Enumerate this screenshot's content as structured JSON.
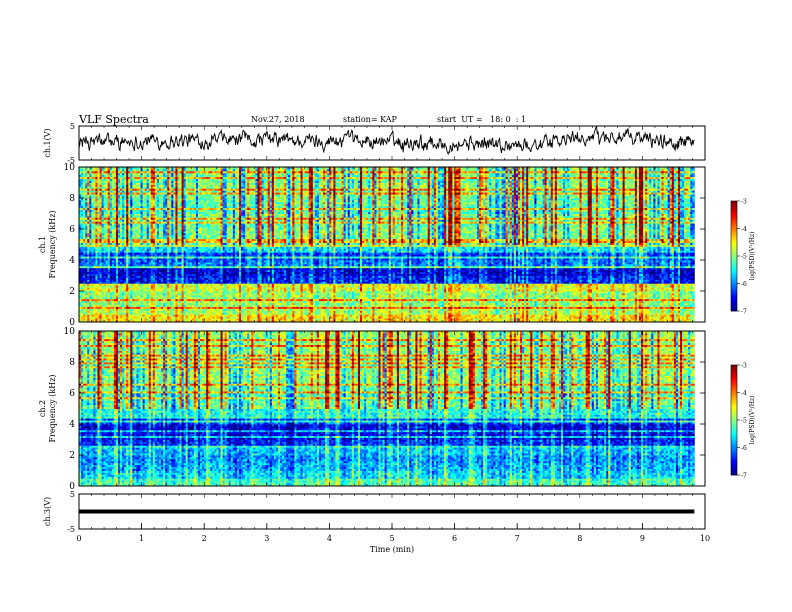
{
  "header": {
    "title": "VLF Spectra",
    "date": "Nov.27, 2018",
    "station": "station= KAP",
    "start_ut": "start  UT =   18: 0  : 1"
  },
  "chart_data": [
    {
      "type": "line",
      "name": "ch1-waveform",
      "ylabel": "ch.1(V)",
      "ylim": [
        -5,
        5
      ],
      "yticks": [
        "5",
        "-5"
      ],
      "xlim": [
        0,
        10
      ],
      "x_range_of_data": [
        0,
        9.83
      ],
      "trend_x": [
        0,
        1,
        2,
        3,
        4,
        5,
        6,
        7,
        7.5,
        8,
        8.5,
        9,
        9.5,
        9.83
      ],
      "trend_y": [
        0.2,
        0.6,
        0.8,
        0.9,
        0.6,
        0.5,
        0.0,
        -0.6,
        -0.1,
        1.6,
        1.8,
        1.3,
        0.3,
        -0.2
      ],
      "fluctuation_amplitude": 1.8,
      "color": "#000000"
    },
    {
      "type": "heatmap",
      "name": "ch1-spectrogram",
      "ylabel_line1": "ch.1",
      "ylabel_line2": "Frequency (kHz)",
      "ylim": [
        0,
        10
      ],
      "yticks": [
        "0",
        "2",
        "4",
        "6",
        "8",
        "10"
      ],
      "xlim": [
        0,
        10
      ],
      "x_range_of_data": [
        0,
        9.83
      ],
      "freq_kHz": [
        0.25,
        0.75,
        1.25,
        1.75,
        2.25,
        2.75,
        3.25,
        3.75,
        4.25,
        4.75,
        5.25,
        5.75,
        6.25,
        6.75,
        7.25,
        7.75,
        8.25,
        8.75,
        9.25,
        9.75
      ],
      "log_psd_profile": [
        -4.4,
        -4.8,
        -4.9,
        -4.9,
        -4.6,
        -6.4,
        -6.6,
        -6.0,
        -6.2,
        -5.6,
        -5.0,
        -5.0,
        -5.1,
        -5.0,
        -5.2,
        -5.1,
        -5.0,
        -4.9,
        -5.0,
        -4.9
      ],
      "colorbar": {
        "label": "log(PSD)(V²/Hz)",
        "ticks": [
          "-3",
          "-4",
          "-5",
          "-6",
          "-7"
        ],
        "range": [
          -7,
          -3
        ]
      }
    },
    {
      "type": "heatmap",
      "name": "ch2-spectrogram",
      "ylabel_line1": "ch.2",
      "ylabel_line2": "Frequency (kHz)",
      "ylim": [
        0,
        10
      ],
      "yticks": [
        "0",
        "2",
        "4",
        "6",
        "8",
        "10"
      ],
      "xlim": [
        0,
        10
      ],
      "x_range_of_data": [
        0,
        9.83
      ],
      "freq_kHz": [
        0.25,
        0.75,
        1.25,
        1.75,
        2.25,
        2.75,
        3.25,
        3.75,
        4.25,
        4.75,
        5.25,
        5.75,
        6.25,
        6.75,
        7.25,
        7.75,
        8.25,
        8.75,
        9.25,
        9.75
      ],
      "log_psd_profile": [
        -5.2,
        -5.6,
        -5.8,
        -5.9,
        -5.7,
        -6.3,
        -6.5,
        -6.6,
        -6.2,
        -5.4,
        -5.1,
        -5.2,
        -5.0,
        -4.9,
        -4.9,
        -5.0,
        -4.9,
        -4.9,
        -4.9,
        -4.8
      ],
      "colorbar": {
        "label": "log(PSD)(V²/Hz)",
        "ticks": [
          "-3",
          "-4",
          "-5",
          "-6",
          "-7"
        ],
        "range": [
          -7,
          -3
        ]
      }
    },
    {
      "type": "line",
      "name": "ch3-waveform",
      "ylabel": "ch.3(V)",
      "ylim": [
        -5,
        5
      ],
      "yticks": [
        "5",
        "-5"
      ],
      "xlim": [
        0,
        10
      ],
      "x_range_of_data": [
        0,
        9.83
      ],
      "constant_y": 0,
      "color": "#000000"
    }
  ],
  "x_axis": {
    "label": "Time  (min)",
    "ticks": [
      "0",
      "1",
      "2",
      "3",
      "4",
      "5",
      "6",
      "7",
      "8",
      "9",
      "10"
    ]
  }
}
